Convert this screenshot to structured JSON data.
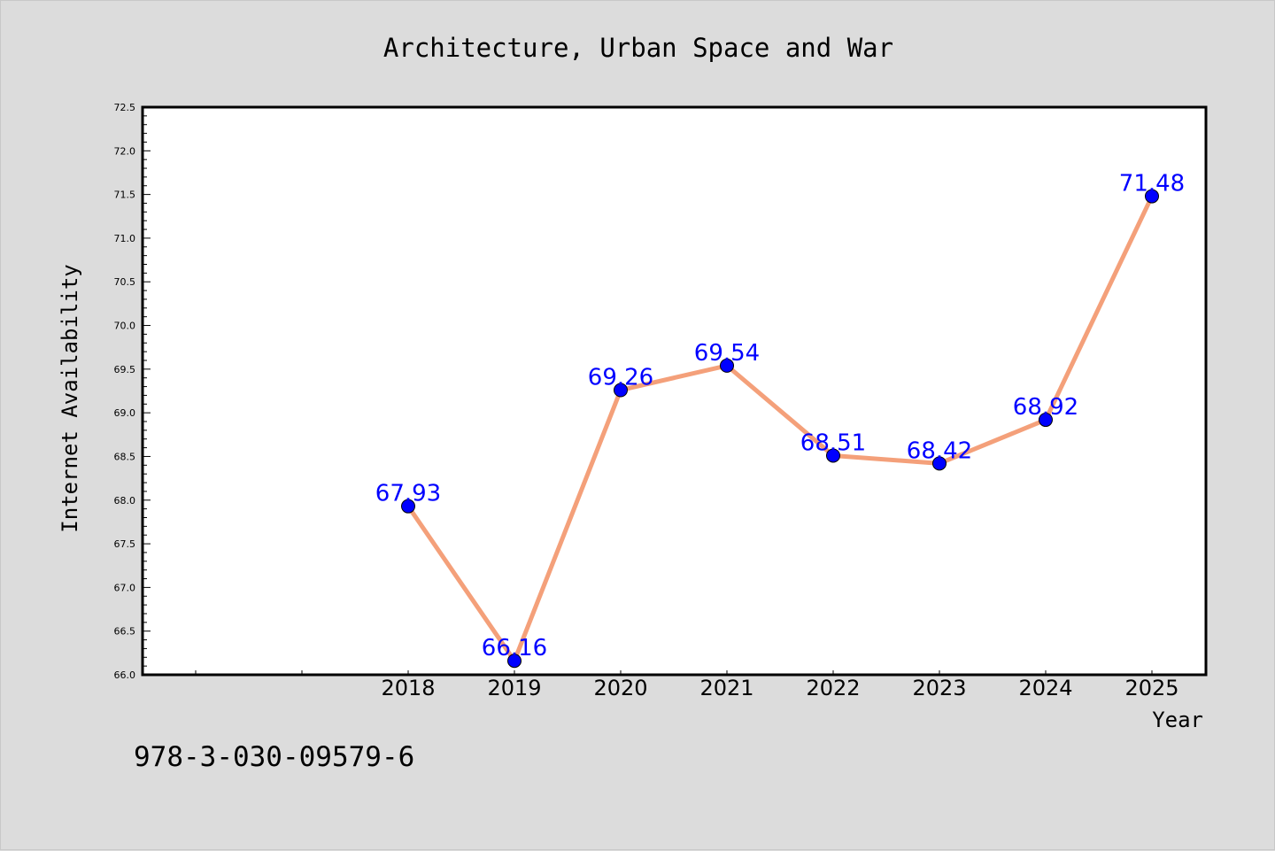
{
  "chart_data": {
    "type": "line",
    "title": "Architecture, Urban Space and War",
    "xlabel": "Year",
    "ylabel": "Internet Availability",
    "x": [
      "2018",
      "2019",
      "2020",
      "2021",
      "2022",
      "2023",
      "2024",
      "2025"
    ],
    "series": [
      {
        "values": [
          67.93,
          66.16,
          69.26,
          69.54,
          68.51,
          68.42,
          68.92,
          71.48
        ],
        "labels": [
          "67.93",
          "66.16",
          "69.26",
          "69.54",
          "68.51",
          "68.42",
          "68.92",
          "71.48"
        ]
      }
    ],
    "ylim": [
      66.0,
      72.5
    ],
    "yticks": [
      "66.0",
      "66.5",
      "67.0",
      "67.5",
      "68.0",
      "68.5",
      "69.0",
      "69.5",
      "70.0",
      "70.5",
      "71.0",
      "71.5",
      "72.0",
      "72.5"
    ],
    "grid": false,
    "legend": "none",
    "colors": {
      "line": "#f4a07a",
      "marker": "#0000ff",
      "label": "#0000ff",
      "background": "#dcdcdc",
      "plot_bg": "#ffffff"
    }
  },
  "footer": {
    "isbn": "978-3-030-09579-6"
  }
}
